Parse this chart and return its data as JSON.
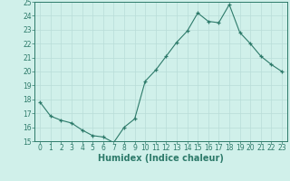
{
  "x": [
    0,
    1,
    2,
    3,
    4,
    5,
    6,
    7,
    8,
    9,
    10,
    11,
    12,
    13,
    14,
    15,
    16,
    17,
    18,
    19,
    20,
    21,
    22,
    23
  ],
  "y": [
    17.8,
    16.8,
    16.5,
    16.3,
    15.8,
    15.4,
    15.3,
    14.9,
    16.0,
    16.6,
    19.3,
    20.1,
    21.1,
    22.1,
    22.9,
    24.2,
    23.6,
    23.5,
    24.8,
    22.8,
    22.0,
    21.1,
    20.5,
    20.0
  ],
  "line_color": "#2d7a6a",
  "marker": "+",
  "marker_size": 3.5,
  "bg_color": "#d0f0ea",
  "grid_color": "#b8ddd8",
  "xlabel": "Humidex (Indice chaleur)",
  "ylim": [
    15,
    25
  ],
  "xlim": [
    -0.5,
    23.5
  ],
  "yticks": [
    15,
    16,
    17,
    18,
    19,
    20,
    21,
    22,
    23,
    24,
    25
  ],
  "xticks": [
    0,
    1,
    2,
    3,
    4,
    5,
    6,
    7,
    8,
    9,
    10,
    11,
    12,
    13,
    14,
    15,
    16,
    17,
    18,
    19,
    20,
    21,
    22,
    23
  ],
  "font_color": "#2d7a6a",
  "tick_fontsize": 5.5,
  "xlabel_fontsize": 7.0,
  "linewidth": 0.8,
  "marker_linewidth": 0.9
}
